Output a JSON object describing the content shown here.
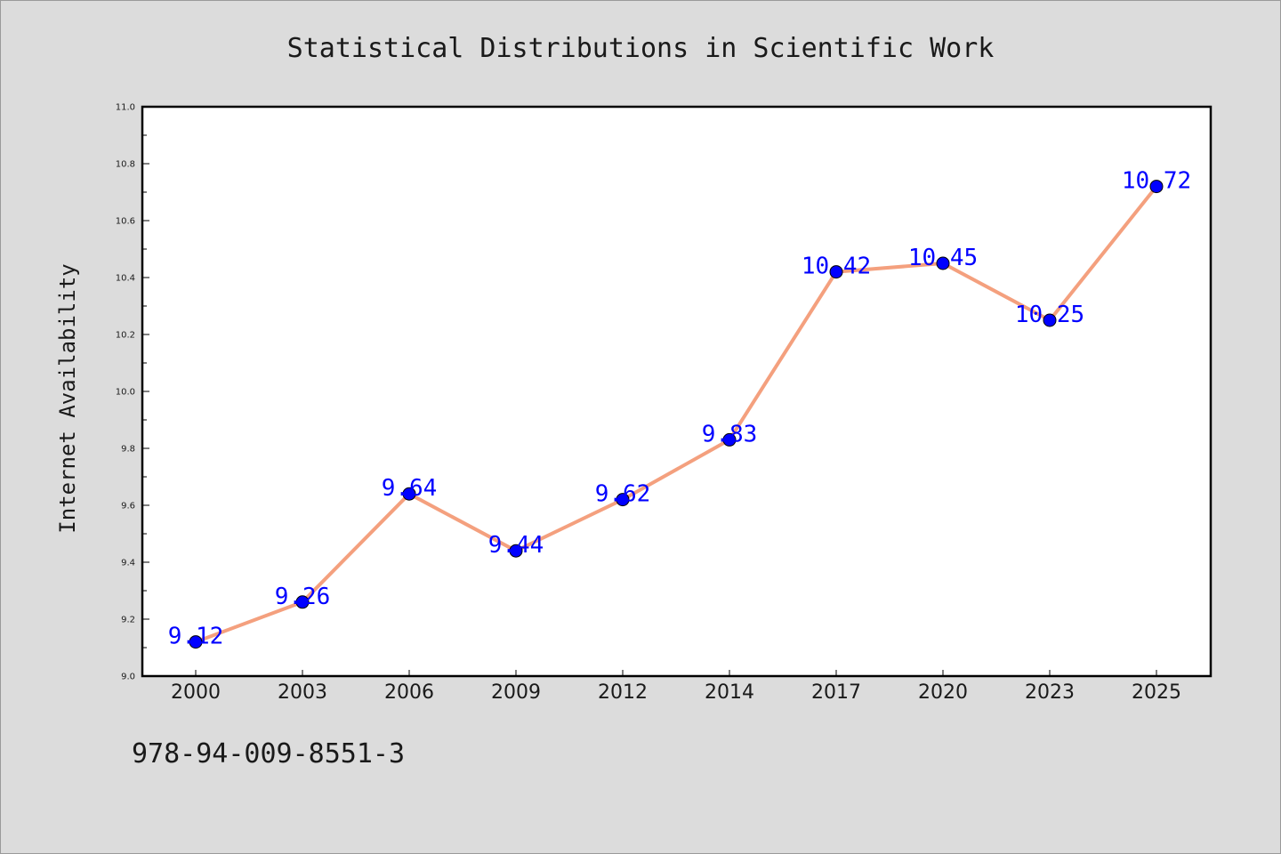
{
  "chart_data": {
    "type": "line",
    "title": "Statistical Distributions in Scientific Work",
    "xlabel": "",
    "ylabel": "Internet Availability",
    "categories": [
      "2000",
      "2003",
      "2006",
      "2009",
      "2012",
      "2014",
      "2017",
      "2020",
      "2023",
      "2025"
    ],
    "series": [
      {
        "values": [
          9.12,
          9.26,
          9.64,
          9.44,
          9.62,
          9.83,
          10.42,
          10.45,
          10.25,
          10.72
        ]
      }
    ],
    "data_labels": [
      "9.12",
      "9.26",
      "9.64",
      "9.44",
      "9.62",
      "9.83",
      "10.42",
      "10.45",
      "10.25",
      "10.72"
    ],
    "ylim": [
      9.0,
      11.0
    ],
    "yticks": [
      "9.0",
      "9.2",
      "9.4",
      "9.6",
      "9.8",
      "10.0",
      "10.2",
      "10.4",
      "10.6",
      "10.8",
      "11.0"
    ],
    "grid": false,
    "line_color": "#f4a07e",
    "marker_color": "#0000ff",
    "label_color": "#0000ff"
  },
  "footer": {
    "code": "978-94-009-8551-3"
  },
  "colors": {
    "background": "#dcdcdc",
    "plot_background": "#ffffff"
  }
}
